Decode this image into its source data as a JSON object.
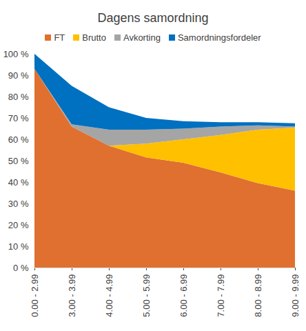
{
  "chart_data": {
    "type": "area",
    "title": "Dagens samordning",
    "stacked": true,
    "legend": "top",
    "categories": [
      "0.00 - 2.99",
      "3.00 - 3.99",
      "4.00 - 4.99",
      "5.00 - 5.99",
      "6.00 - 6.99",
      "7.00 - 7.99",
      "8.00 - 8.99",
      "9.00 - 9.99"
    ],
    "series": [
      {
        "name": "FT",
        "color": "#E0702F",
        "values": [
          93,
          66,
          57,
          51.5,
          49,
          44.5,
          39.5,
          36
        ]
      },
      {
        "name": "Brutto",
        "color": "#FFC000",
        "values": [
          0,
          0,
          0,
          6.5,
          11,
          17.5,
          25,
          29.5
        ]
      },
      {
        "name": "Avkorting",
        "color": "#A5A5A5",
        "values": [
          0,
          1,
          7.5,
          6.5,
          5,
          4,
          2,
          0.5
        ]
      },
      {
        "name": "Samordningsfordeler",
        "color": "#0070C0",
        "values": [
          7,
          18,
          10.5,
          5.5,
          3.5,
          2,
          1.5,
          1.5
        ]
      }
    ],
    "ylim": [
      0,
      100
    ],
    "yticks": [
      {
        "value": 0,
        "label": "0 %"
      },
      {
        "value": 10,
        "label": "10 %"
      },
      {
        "value": 20,
        "label": "20 %"
      },
      {
        "value": 30,
        "label": "30 %"
      },
      {
        "value": 40,
        "label": "40 %"
      },
      {
        "value": 50,
        "label": "50 %"
      },
      {
        "value": 60,
        "label": "60 %"
      },
      {
        "value": 70,
        "label": "70 %"
      },
      {
        "value": 80,
        "label": "80 %"
      },
      {
        "value": 90,
        "label": "90 %"
      },
      {
        "value": 100,
        "label": "100 %"
      }
    ],
    "grid": false
  }
}
